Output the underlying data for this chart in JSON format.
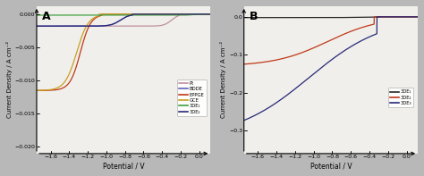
{
  "background_color": "#b8b8b8",
  "panel_facecolor": "#f0efeb",
  "panel_A": {
    "title": "A",
    "xlabel": "Potential / V",
    "ylabel": "Current Density / A cm⁻²",
    "xlim": [
      -1.75,
      0.12
    ],
    "ylim": [
      -0.021,
      0.0012
    ],
    "xticks": [
      -1.6,
      -1.4,
      -1.2,
      -1.0,
      -0.8,
      -0.6,
      -0.4,
      -0.2,
      0.0
    ],
    "yticks": [
      0.0,
      -0.005,
      -0.01,
      -0.015,
      -0.02
    ],
    "series": [
      {
        "label": "Pt",
        "color": "#c090a0",
        "onset": -0.22,
        "halfwave": -0.3,
        "limit": -0.0018,
        "sharpness": 25.0
      },
      {
        "label": "BDDE",
        "color": "#6060c0",
        "onset": -0.72,
        "halfwave": -0.85,
        "limit": -0.0018,
        "sharpness": 20.0
      },
      {
        "label": "EPPGE",
        "color": "#c03818",
        "onset": -1.05,
        "halfwave": -1.28,
        "limit": -0.0115,
        "sharpness": 18.0
      },
      {
        "label": "GCE",
        "color": "#c8a020",
        "onset": -1.08,
        "halfwave": -1.32,
        "limit": -0.0115,
        "sharpness": 16.0
      },
      {
        "label": "3DE₁",
        "color": "#40a040",
        "onset": -0.05,
        "halfwave": -0.07,
        "limit": -0.00015,
        "sharpness": 30.0
      },
      {
        "label": "3DE₂",
        "color": "#282878",
        "onset": -0.72,
        "halfwave": -0.85,
        "limit": -0.0018,
        "sharpness": 20.0
      }
    ]
  },
  "panel_B": {
    "title": "B",
    "xlabel": "Potential / V",
    "ylabel": "Current Density / A cm⁻²",
    "xlim": [
      -1.75,
      0.12
    ],
    "ylim": [
      -0.36,
      0.028
    ],
    "xticks": [
      -1.6,
      -1.4,
      -1.2,
      -1.0,
      -0.8,
      -0.6,
      -0.4,
      -0.2,
      0.0
    ],
    "yticks": [
      0.0,
      -0.1,
      -0.2,
      -0.3
    ],
    "series": [
      {
        "label": "3DE₁",
        "color": "#282828",
        "onset": -0.28,
        "halfwave": -0.45,
        "limit": -0.002,
        "sharpness": 8.0
      },
      {
        "label": "3DE₂",
        "color": "#c03818",
        "onset": -0.35,
        "halfwave": -0.85,
        "limit": -0.13,
        "sharpness": 3.5
      },
      {
        "label": "3DE₃",
        "color": "#282878",
        "onset": -0.32,
        "halfwave": -1.05,
        "limit": -0.32,
        "sharpness": 2.5
      }
    ]
  }
}
